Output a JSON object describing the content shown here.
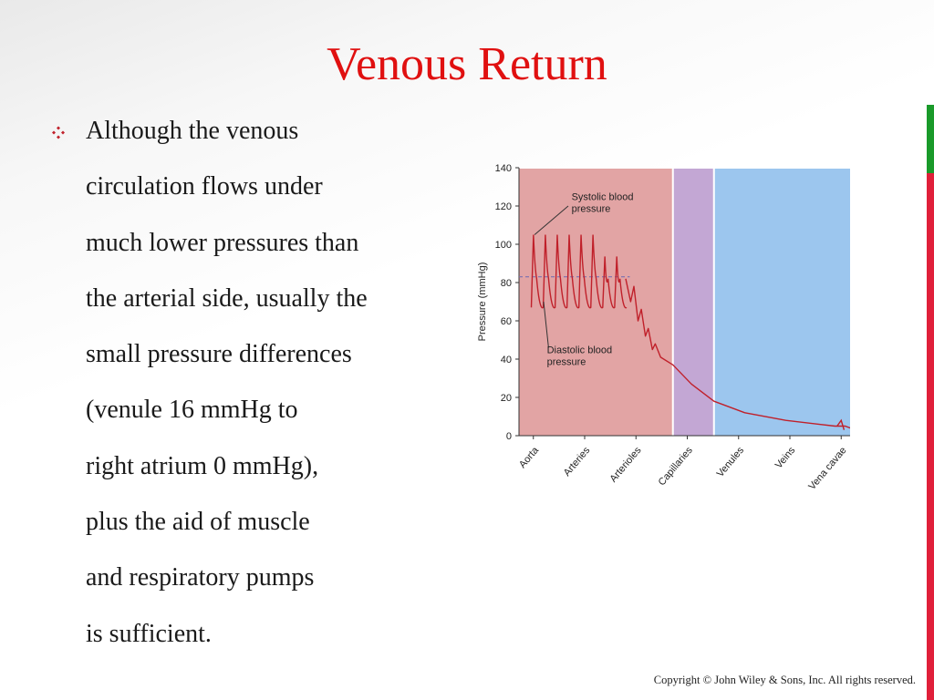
{
  "slide": {
    "title": "Venous Return",
    "bullet_lines": [
      "Although the venous",
      "circulation flows under",
      "much lower pressures than",
      "the arterial side, usually the",
      "small pressure differences",
      "(venule 16 mmHg to",
      "right atrium 0 mmHg),",
      "plus the aid of muscle",
      "and respiratory pumps",
      "is sufficient."
    ],
    "copyright": "Copyright © John Wiley & Sons, Inc. All rights reserved."
  },
  "colors": {
    "title": "#e01010",
    "bullet": "#c0202a",
    "arterial_region": "#e2a4a4",
    "capillary_region": "#c3a7d4",
    "venous_region": "#9cc6ee",
    "pressure_line": "#c0202a",
    "mean_line": "#7a6fb0",
    "accent_green": "#1a9a2a",
    "accent_red": "#e0203a"
  },
  "chart_data": {
    "type": "line",
    "ylabel": "Pressure (mmHg)",
    "ylim": [
      0,
      140
    ],
    "yticks": [
      0,
      20,
      40,
      60,
      80,
      100,
      120,
      140
    ],
    "categories": [
      "Aorta",
      "Arteries",
      "Arterioles",
      "Capillaries",
      "Venules",
      "Veins",
      "Vena cavae"
    ],
    "regions": [
      {
        "name": "arterial",
        "x_range": [
          0,
          3.75
        ]
      },
      {
        "name": "capillary",
        "x_range": [
          3.75,
          4.75
        ]
      },
      {
        "name": "venous",
        "x_range": [
          4.75,
          8.7
        ]
      }
    ],
    "systolic_peak": 105,
    "diastolic_trough": 67,
    "mean_pressure": 83,
    "series": [
      {
        "name": "pressure",
        "points": [
          [
            0.3,
            68
          ],
          [
            1.0,
            92
          ],
          [
            1.5,
            83
          ],
          [
            2.2,
            84
          ],
          [
            2.65,
            80
          ],
          [
            2.9,
            68
          ],
          [
            3.1,
            58
          ],
          [
            3.25,
            50
          ],
          [
            3.45,
            43
          ],
          [
            3.75,
            37
          ],
          [
            4.2,
            27
          ],
          [
            4.75,
            18
          ],
          [
            5.5,
            12
          ],
          [
            6.5,
            8
          ],
          [
            7.3,
            6
          ],
          [
            7.7,
            5
          ],
          [
            7.95,
            5
          ],
          [
            8.2,
            3
          ],
          [
            8.45,
            0
          ]
        ]
      }
    ],
    "annotations": [
      {
        "lines": [
          "Systolic blood",
          "pressure"
        ]
      },
      {
        "lines": [
          "Diastolic blood",
          "pressure"
        ]
      }
    ]
  }
}
